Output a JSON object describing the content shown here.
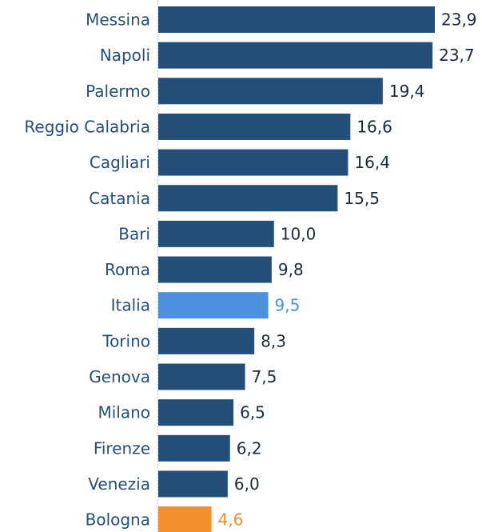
{
  "chart_data": {
    "type": "bar",
    "orientation": "horizontal",
    "title": "",
    "xlabel": "",
    "ylabel": "",
    "xlim": [
      0,
      23.9
    ],
    "grid": false,
    "legend": "none",
    "categories": [
      "Messina",
      "Napoli",
      "Palermo",
      "Reggio Calabria",
      "Cagliari",
      "Catania",
      "Bari",
      "Roma",
      "Italia",
      "Torino",
      "Genova",
      "Milano",
      "Firenze",
      "Venezia",
      "Bologna"
    ],
    "values": [
      23.9,
      23.7,
      19.4,
      16.6,
      16.4,
      15.5,
      10.0,
      9.8,
      9.5,
      8.3,
      7.5,
      6.5,
      6.2,
      6.0,
      4.6
    ],
    "value_labels": [
      "23,9",
      "23,7",
      "19,4",
      "16,6",
      "16,4",
      "15,5",
      "10,0",
      "9,8",
      "9,5",
      "8,3",
      "7,5",
      "6,5",
      "6,2",
      "6,0",
      "4,6"
    ],
    "highlights": {
      "Italia": "italy",
      "Bologna": "bologna"
    }
  },
  "colors": {
    "bar_default": "#244f78",
    "bar_italy": "#4a90dc",
    "bar_bologna": "#f28e2b",
    "category_text": "#244f78",
    "value_text": "#1c2b3a",
    "value_text_italy": "#4a90dc",
    "value_text_bologna": "#f28e2b",
    "axis_line": "#c8c8c8"
  }
}
